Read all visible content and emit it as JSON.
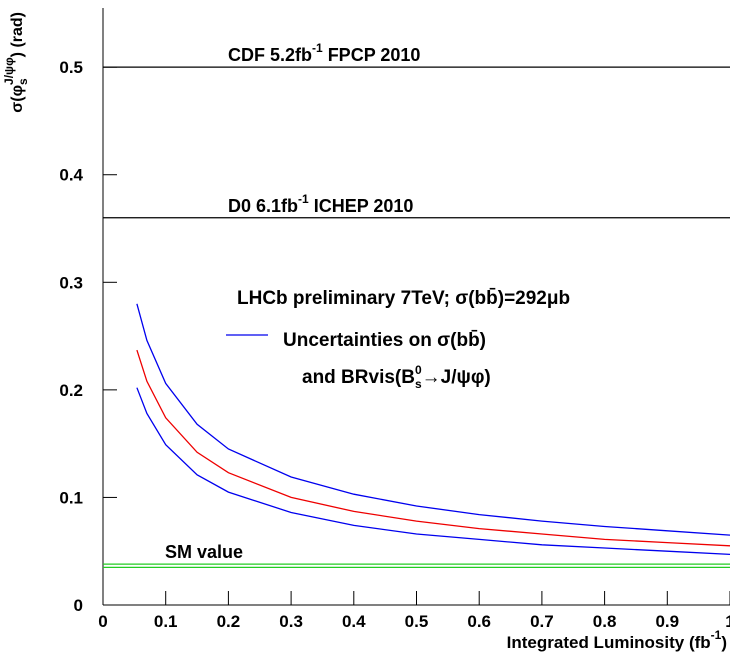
{
  "chart_data": {
    "type": "line",
    "ylabel": [
      {
        "t": "σ(φ"
      },
      {
        "t": "s",
        "sub": true
      },
      {
        "t": "J/ψφ",
        "sup": true
      },
      {
        "t": ")  (rad)"
      }
    ],
    "xlabel": [
      {
        "t": "Integrated Luminosity (fb"
      },
      {
        "t": "-1",
        "sup": true
      },
      {
        "t": ")"
      }
    ],
    "xlim": [
      0,
      1
    ],
    "ylim": [
      0,
      0.555
    ],
    "xticks": [
      0,
      0.1,
      0.2,
      0.3,
      0.4,
      0.5,
      0.6,
      0.7,
      0.8,
      0.9,
      1
    ],
    "yticks": [
      0,
      0.1,
      0.2,
      0.3,
      0.4,
      0.5
    ],
    "x": [
      0.054,
      0.07,
      0.1,
      0.15,
      0.2,
      0.3,
      0.4,
      0.5,
      0.6,
      0.7,
      0.8,
      0.9,
      1.0
    ],
    "series": [
      {
        "color": "#0000ee",
        "values": [
          0.28,
          0.246,
          0.206,
          0.168,
          0.145,
          0.119,
          0.103,
          0.092,
          0.084,
          0.078,
          0.073,
          0.069,
          0.065
        ]
      },
      {
        "color": "#ee0000",
        "values": [
          0.237,
          0.208,
          0.174,
          0.142,
          0.123,
          0.1,
          0.087,
          0.078,
          0.071,
          0.066,
          0.061,
          0.058,
          0.055
        ]
      },
      {
        "color": "#0000ee",
        "values": [
          0.202,
          0.178,
          0.149,
          0.121,
          0.105,
          0.086,
          0.074,
          0.066,
          0.061,
          0.056,
          0.053,
          0.05,
          0.047
        ]
      }
    ],
    "hlines": [
      {
        "y": 0.5,
        "color": "#000000",
        "label": [
          {
            "t": "CDF 5.2fb"
          },
          {
            "t": "-1",
            "sup": true
          },
          {
            "t": " FPCP 2010"
          }
        ]
      },
      {
        "y": 0.36,
        "color": "#000000",
        "label": [
          {
            "t": "D0 6.1fb"
          },
          {
            "t": "-1",
            "sup": true
          },
          {
            "t": " ICHEP 2010"
          }
        ]
      },
      {
        "y": 0.038,
        "color": "#22cc22",
        "label": [
          {
            "t": "SM value"
          }
        ]
      },
      {
        "y": 0.035,
        "color": "#22cc22"
      }
    ],
    "legend": {
      "title": {
        "color": "#ee0000",
        "text": [
          {
            "t": "LHCb preliminary 7TeV;  σ(bb̄)=292μb"
          }
        ]
      },
      "color": "#0000ee",
      "lines": [
        [
          {
            "t": "Uncertainties on  σ(bb̄)"
          }
        ],
        [
          {
            "t": "and BRvis(B"
          },
          {
            "t": "0",
            "sup": true
          },
          {
            "t": "s",
            "sub": true
          },
          {
            "t": "→J/ψφ)"
          }
        ]
      ]
    }
  }
}
